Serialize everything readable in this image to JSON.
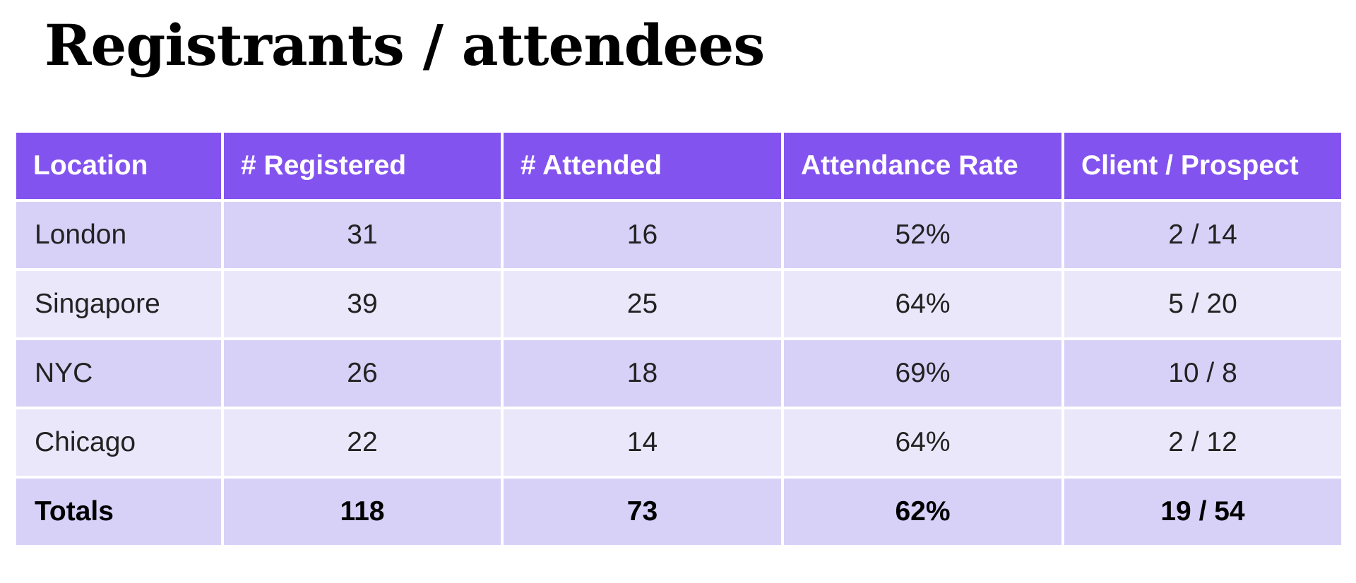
{
  "title": "Registrants / attendees",
  "colors": {
    "header_bg": "#8353ef",
    "row_dark": "#d7d0f7",
    "row_light": "#ebe7fb"
  },
  "table": {
    "headers": [
      "Location",
      "# Registered",
      "# Attended",
      "Attendance Rate",
      "Client / Prospect"
    ],
    "rows": [
      [
        "London",
        "31",
        "16",
        "52%",
        "2 / 14"
      ],
      [
        "Singapore",
        "39",
        "25",
        "64%",
        "5 / 20"
      ],
      [
        "NYC",
        "26",
        "18",
        "69%",
        "10 / 8"
      ],
      [
        "Chicago",
        "22",
        "14",
        "64%",
        "2 / 12"
      ]
    ],
    "totals": [
      "Totals",
      "118",
      "73",
      "62%",
      "19 / 54"
    ]
  }
}
